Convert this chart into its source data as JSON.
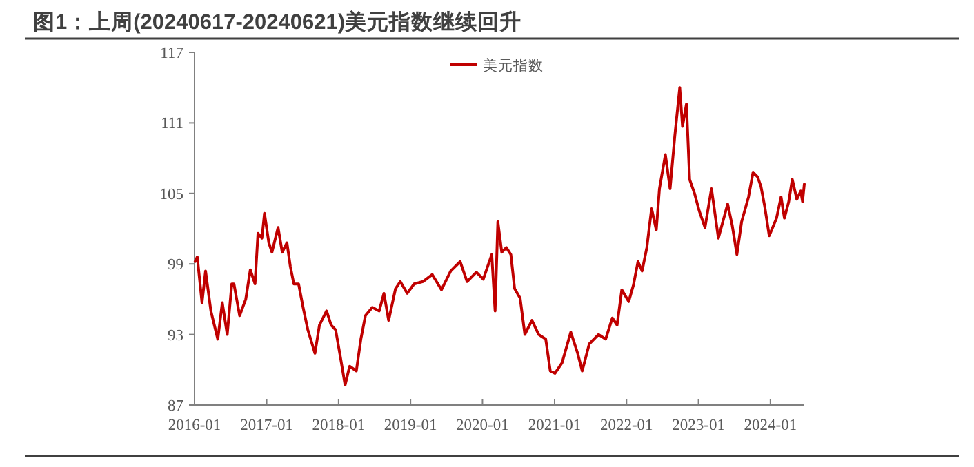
{
  "chart_data": {
    "type": "line",
    "title": "图1：上周(20240617-20240621)美元指数继续回升",
    "legend": "top",
    "grid": false,
    "marker": "none",
    "line_style": "solid",
    "xlim": [
      "2016-01-01",
      "2024-06-21"
    ],
    "ylim": [
      87,
      117
    ],
    "yticks": [
      87,
      93,
      99,
      105,
      111,
      117
    ],
    "xticks": [
      "2016-01",
      "2017-01",
      "2018-01",
      "2019-01",
      "2020-01",
      "2021-01",
      "2022-01",
      "2023-01",
      "2024-01"
    ],
    "x": [
      "2016-01-04",
      "2016-01-15",
      "2016-02-08",
      "2016-02-26",
      "2016-03-24",
      "2016-04-28",
      "2016-05-21",
      "2016-06-15",
      "2016-07-08",
      "2016-07-19",
      "2016-08-17",
      "2016-09-17",
      "2016-10-10",
      "2016-11-03",
      "2016-11-18",
      "2016-12-08",
      "2016-12-21",
      "2017-01-12",
      "2017-01-28",
      "2017-02-28",
      "2017-03-21",
      "2017-04-14",
      "2017-05-01",
      "2017-05-19",
      "2017-06-12",
      "2017-07-05",
      "2017-07-29",
      "2017-09-03",
      "2017-09-26",
      "2017-11-01",
      "2017-11-24",
      "2017-12-17",
      "2018-01-10",
      "2018-02-03",
      "2018-02-26",
      "2018-04-01",
      "2018-04-24",
      "2018-05-17",
      "2018-06-21",
      "2018-07-26",
      "2018-08-19",
      "2018-09-12",
      "2018-10-17",
      "2018-11-10",
      "2018-12-15",
      "2019-01-19",
      "2019-03-05",
      "2019-04-21",
      "2019-06-07",
      "2019-07-24",
      "2019-09-10",
      "2019-10-15",
      "2019-12-01",
      "2020-01-05",
      "2020-02-17",
      "2020-03-05",
      "2020-03-19",
      "2020-04-08",
      "2020-05-01",
      "2020-05-24",
      "2020-06-12",
      "2020-07-10",
      "2020-08-03",
      "2020-09-08",
      "2020-10-12",
      "2020-11-17",
      "2020-12-10",
      "2021-01-03",
      "2021-02-08",
      "2021-03-24",
      "2021-04-28",
      "2021-05-21",
      "2021-06-26",
      "2021-08-12",
      "2021-09-17",
      "2021-10-21",
      "2021-11-14",
      "2021-12-08",
      "2022-01-12",
      "2022-02-05",
      "2022-02-28",
      "2022-03-21",
      "2022-04-14",
      "2022-05-08",
      "2022-06-01",
      "2022-06-17",
      "2022-07-17",
      "2022-08-10",
      "2022-09-03",
      "2022-09-28",
      "2022-10-12",
      "2022-11-01",
      "2022-11-17",
      "2022-12-12",
      "2023-01-05",
      "2023-02-03",
      "2023-03-08",
      "2023-04-12",
      "2023-05-29",
      "2023-06-21",
      "2023-07-15",
      "2023-08-08",
      "2023-09-12",
      "2023-10-05",
      "2023-10-28",
      "2023-11-14",
      "2023-12-03",
      "2023-12-26",
      "2024-02-01",
      "2024-02-24",
      "2024-03-12",
      "2024-04-03",
      "2024-04-21",
      "2024-05-14",
      "2024-06-03",
      "2024-06-12",
      "2024-06-21"
    ],
    "series": [
      {
        "name": "美元指数",
        "color": "#c00000",
        "values": [
          99.2,
          99.6,
          95.7,
          98.4,
          95.0,
          92.6,
          95.7,
          93.0,
          97.3,
          97.3,
          94.6,
          96.0,
          98.5,
          97.3,
          101.6,
          101.2,
          103.3,
          100.8,
          100.0,
          102.1,
          100.0,
          100.8,
          98.8,
          97.3,
          97.3,
          95.3,
          93.4,
          91.4,
          93.8,
          95.0,
          93.8,
          93.4,
          91.1,
          88.7,
          90.3,
          89.9,
          92.6,
          94.6,
          95.3,
          95.0,
          96.5,
          94.2,
          96.9,
          97.5,
          96.5,
          97.3,
          97.5,
          98.1,
          96.8,
          98.4,
          99.2,
          97.5,
          98.3,
          97.7,
          99.8,
          95.0,
          102.6,
          100.0,
          100.4,
          99.8,
          96.9,
          96.1,
          93.0,
          94.2,
          93.0,
          92.6,
          89.9,
          89.7,
          90.6,
          93.2,
          91.4,
          89.9,
          92.2,
          93.0,
          92.6,
          94.4,
          93.8,
          96.8,
          95.8,
          97.2,
          99.2,
          98.4,
          100.4,
          103.7,
          101.9,
          105.4,
          108.3,
          105.4,
          109.9,
          114.0,
          110.7,
          112.6,
          106.2,
          105.0,
          103.5,
          102.1,
          105.4,
          101.2,
          104.1,
          102.3,
          99.8,
          102.6,
          104.7,
          106.8,
          106.4,
          105.6,
          103.9,
          101.4,
          102.9,
          104.7,
          102.9,
          104.3,
          106.2,
          104.5,
          105.2,
          104.3,
          105.8
        ]
      }
    ]
  }
}
